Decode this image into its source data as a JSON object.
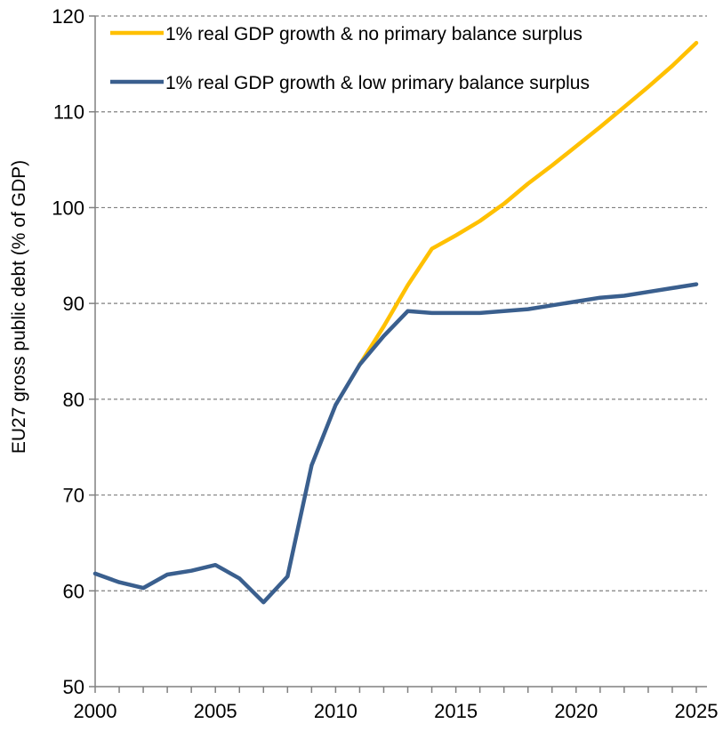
{
  "chart_data": {
    "type": "line",
    "title": "",
    "xlabel": "",
    "ylabel": "EU27 gross public debt (% of GDP)",
    "xlim": [
      2000,
      2025
    ],
    "ylim": [
      50,
      120
    ],
    "x_ticks": [
      "2000",
      "2005",
      "2010",
      "2015",
      "2020",
      "2025"
    ],
    "y_ticks": [
      "50",
      "60",
      "70",
      "80",
      "90",
      "100",
      "110",
      "120"
    ],
    "grid": "horizontal dashed",
    "legend_position": "top-left",
    "series": [
      {
        "name": "1% real GDP growth & no primary balance surplus",
        "color": "#FFC000",
        "x": [
          2011,
          2012,
          2013,
          2014,
          2015,
          2016,
          2017,
          2018,
          2019,
          2020,
          2021,
          2022,
          2023,
          2024,
          2025
        ],
        "values": [
          83.6,
          87.6,
          91.9,
          95.7,
          97.1,
          98.6,
          100.4,
          102.5,
          104.4,
          106.4,
          108.4,
          110.5,
          112.6,
          114.8,
          117.2
        ]
      },
      {
        "name": "1% real GDP growth & low primary balance surplus",
        "color": "#3A5F8E",
        "x": [
          2000,
          2001,
          2002,
          2003,
          2004,
          2005,
          2006,
          2007,
          2008,
          2009,
          2010,
          2011,
          2012,
          2013,
          2014,
          2015,
          2016,
          2017,
          2018,
          2019,
          2020,
          2021,
          2022,
          2023,
          2024,
          2025
        ],
        "values": [
          61.8,
          60.9,
          60.3,
          61.7,
          62.1,
          62.7,
          61.3,
          58.8,
          61.5,
          73.1,
          79.4,
          83.6,
          86.6,
          89.2,
          89.0,
          89.0,
          89.0,
          89.2,
          89.4,
          89.8,
          90.2,
          90.6,
          90.8,
          91.2,
          91.6,
          92.0
        ]
      }
    ]
  }
}
